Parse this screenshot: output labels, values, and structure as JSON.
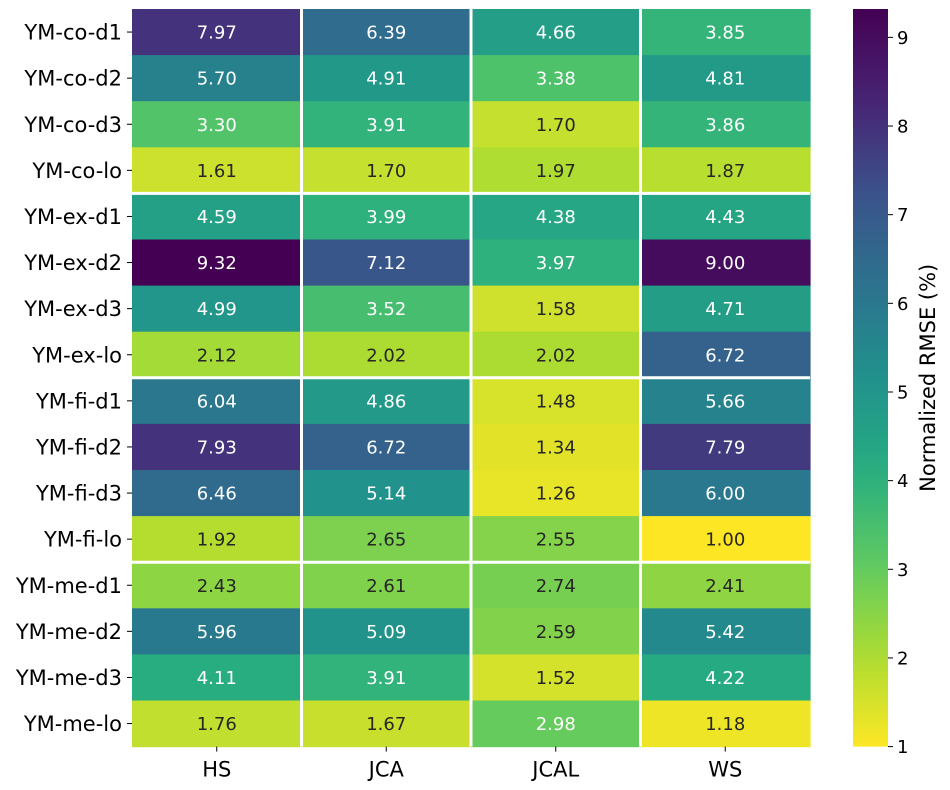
{
  "chart_data": {
    "type": "heatmap",
    "title": "",
    "xlabel": "",
    "ylabel": "",
    "columns": [
      "HS",
      "JCA",
      "JCAL",
      "WS"
    ],
    "rows": [
      "YM-co-d1",
      "YM-co-d2",
      "YM-co-d3",
      "YM-co-lo",
      "YM-ex-d1",
      "YM-ex-d2",
      "YM-ex-d3",
      "YM-ex-lo",
      "YM-fi-d1",
      "YM-fi-d2",
      "YM-fi-d3",
      "YM-fi-lo",
      "YM-me-d1",
      "YM-me-d2",
      "YM-me-d3",
      "YM-me-lo"
    ],
    "row_groups": [
      [
        "YM-co-d1",
        "YM-co-d2",
        "YM-co-d3",
        "YM-co-lo"
      ],
      [
        "YM-ex-d1",
        "YM-ex-d2",
        "YM-ex-d3",
        "YM-ex-lo"
      ],
      [
        "YM-fi-d1",
        "YM-fi-d2",
        "YM-fi-d3",
        "YM-fi-lo"
      ],
      [
        "YM-me-d1",
        "YM-me-d2",
        "YM-me-d3",
        "YM-me-lo"
      ]
    ],
    "values": [
      [
        7.97,
        6.39,
        4.66,
        3.85
      ],
      [
        5.7,
        4.91,
        3.38,
        4.81
      ],
      [
        3.3,
        3.91,
        1.7,
        3.86
      ],
      [
        1.61,
        1.7,
        1.97,
        1.87
      ],
      [
        4.59,
        3.99,
        4.38,
        4.43
      ],
      [
        9.32,
        7.12,
        3.97,
        9.0
      ],
      [
        4.99,
        3.52,
        1.58,
        4.71
      ],
      [
        2.12,
        2.02,
        2.02,
        6.72
      ],
      [
        6.04,
        4.86,
        1.48,
        5.66
      ],
      [
        7.93,
        6.72,
        1.34,
        7.79
      ],
      [
        6.46,
        5.14,
        1.26,
        6.0
      ],
      [
        1.92,
        2.65,
        2.55,
        1.0
      ],
      [
        2.43,
        2.61,
        2.74,
        2.41
      ],
      [
        5.96,
        5.09,
        2.59,
        5.42
      ],
      [
        4.11,
        3.91,
        1.52,
        4.22
      ],
      [
        1.76,
        1.67,
        2.98,
        1.18
      ]
    ],
    "value_format_decimals": 2,
    "colormap": "viridis_r",
    "colorbar": {
      "label": "Normalized RMSE (%)",
      "min": 1.0,
      "max": 9.32,
      "ticks": [
        1,
        2,
        3,
        4,
        5,
        6,
        7,
        8,
        9
      ]
    },
    "grid": false
  }
}
